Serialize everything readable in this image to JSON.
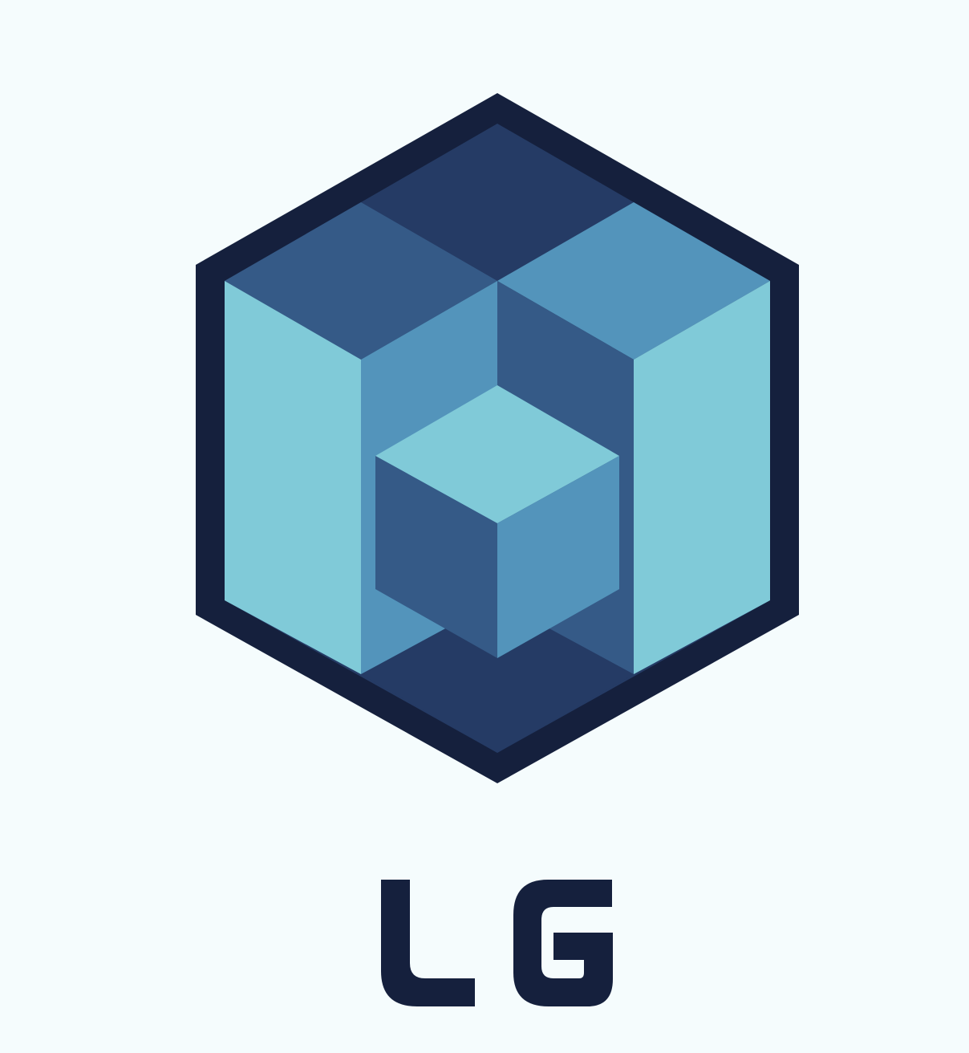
{
  "logo": {
    "wordmark": "LG",
    "colors": {
      "background": "#f5fcfd",
      "outline": "#15203d",
      "dark_navy": "#253b65",
      "mid_blue": "#355a87",
      "steel_blue": "#5394bb",
      "light_cyan": "#80cad8"
    },
    "emblem_icon": "hexagonal-isometric-cube-icon"
  }
}
